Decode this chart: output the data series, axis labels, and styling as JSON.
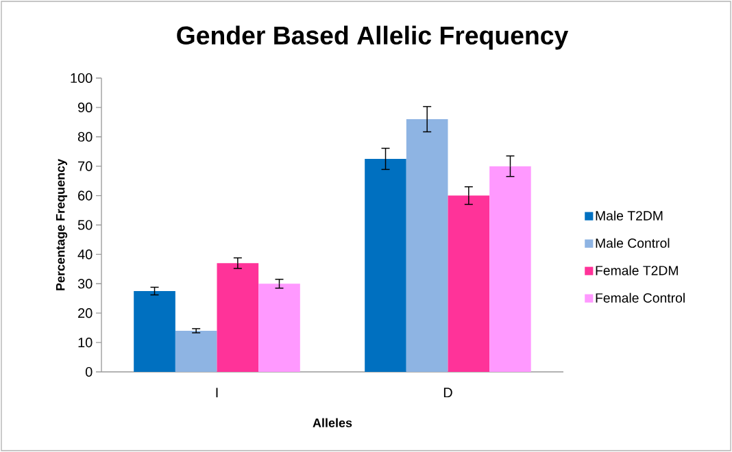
{
  "chart_data": {
    "type": "bar",
    "title": "Gender Based Allelic Frequency",
    "xlabel": "Alleles",
    "ylabel": "Percentage Frequency",
    "categories": [
      "I",
      "D"
    ],
    "series": [
      {
        "name": "Male T2DM",
        "color": "#0070c0",
        "values": [
          27.5,
          72.5
        ],
        "errors": [
          1.3,
          3.6
        ]
      },
      {
        "name": "Male Control",
        "color": "#8eb4e3",
        "values": [
          14,
          86
        ],
        "errors": [
          0.7,
          4.3
        ]
      },
      {
        "name": "Female T2DM",
        "color": "#ff3399",
        "values": [
          37,
          60
        ],
        "errors": [
          1.8,
          3
        ]
      },
      {
        "name": "Female Control",
        "color": "#ff99ff",
        "values": [
          30,
          70
        ],
        "errors": [
          1.5,
          3.5
        ]
      }
    ],
    "ylim": [
      0,
      100
    ],
    "yticks": [
      0,
      10,
      20,
      30,
      40,
      50,
      60,
      70,
      80,
      90,
      100
    ],
    "legend": "right"
  }
}
